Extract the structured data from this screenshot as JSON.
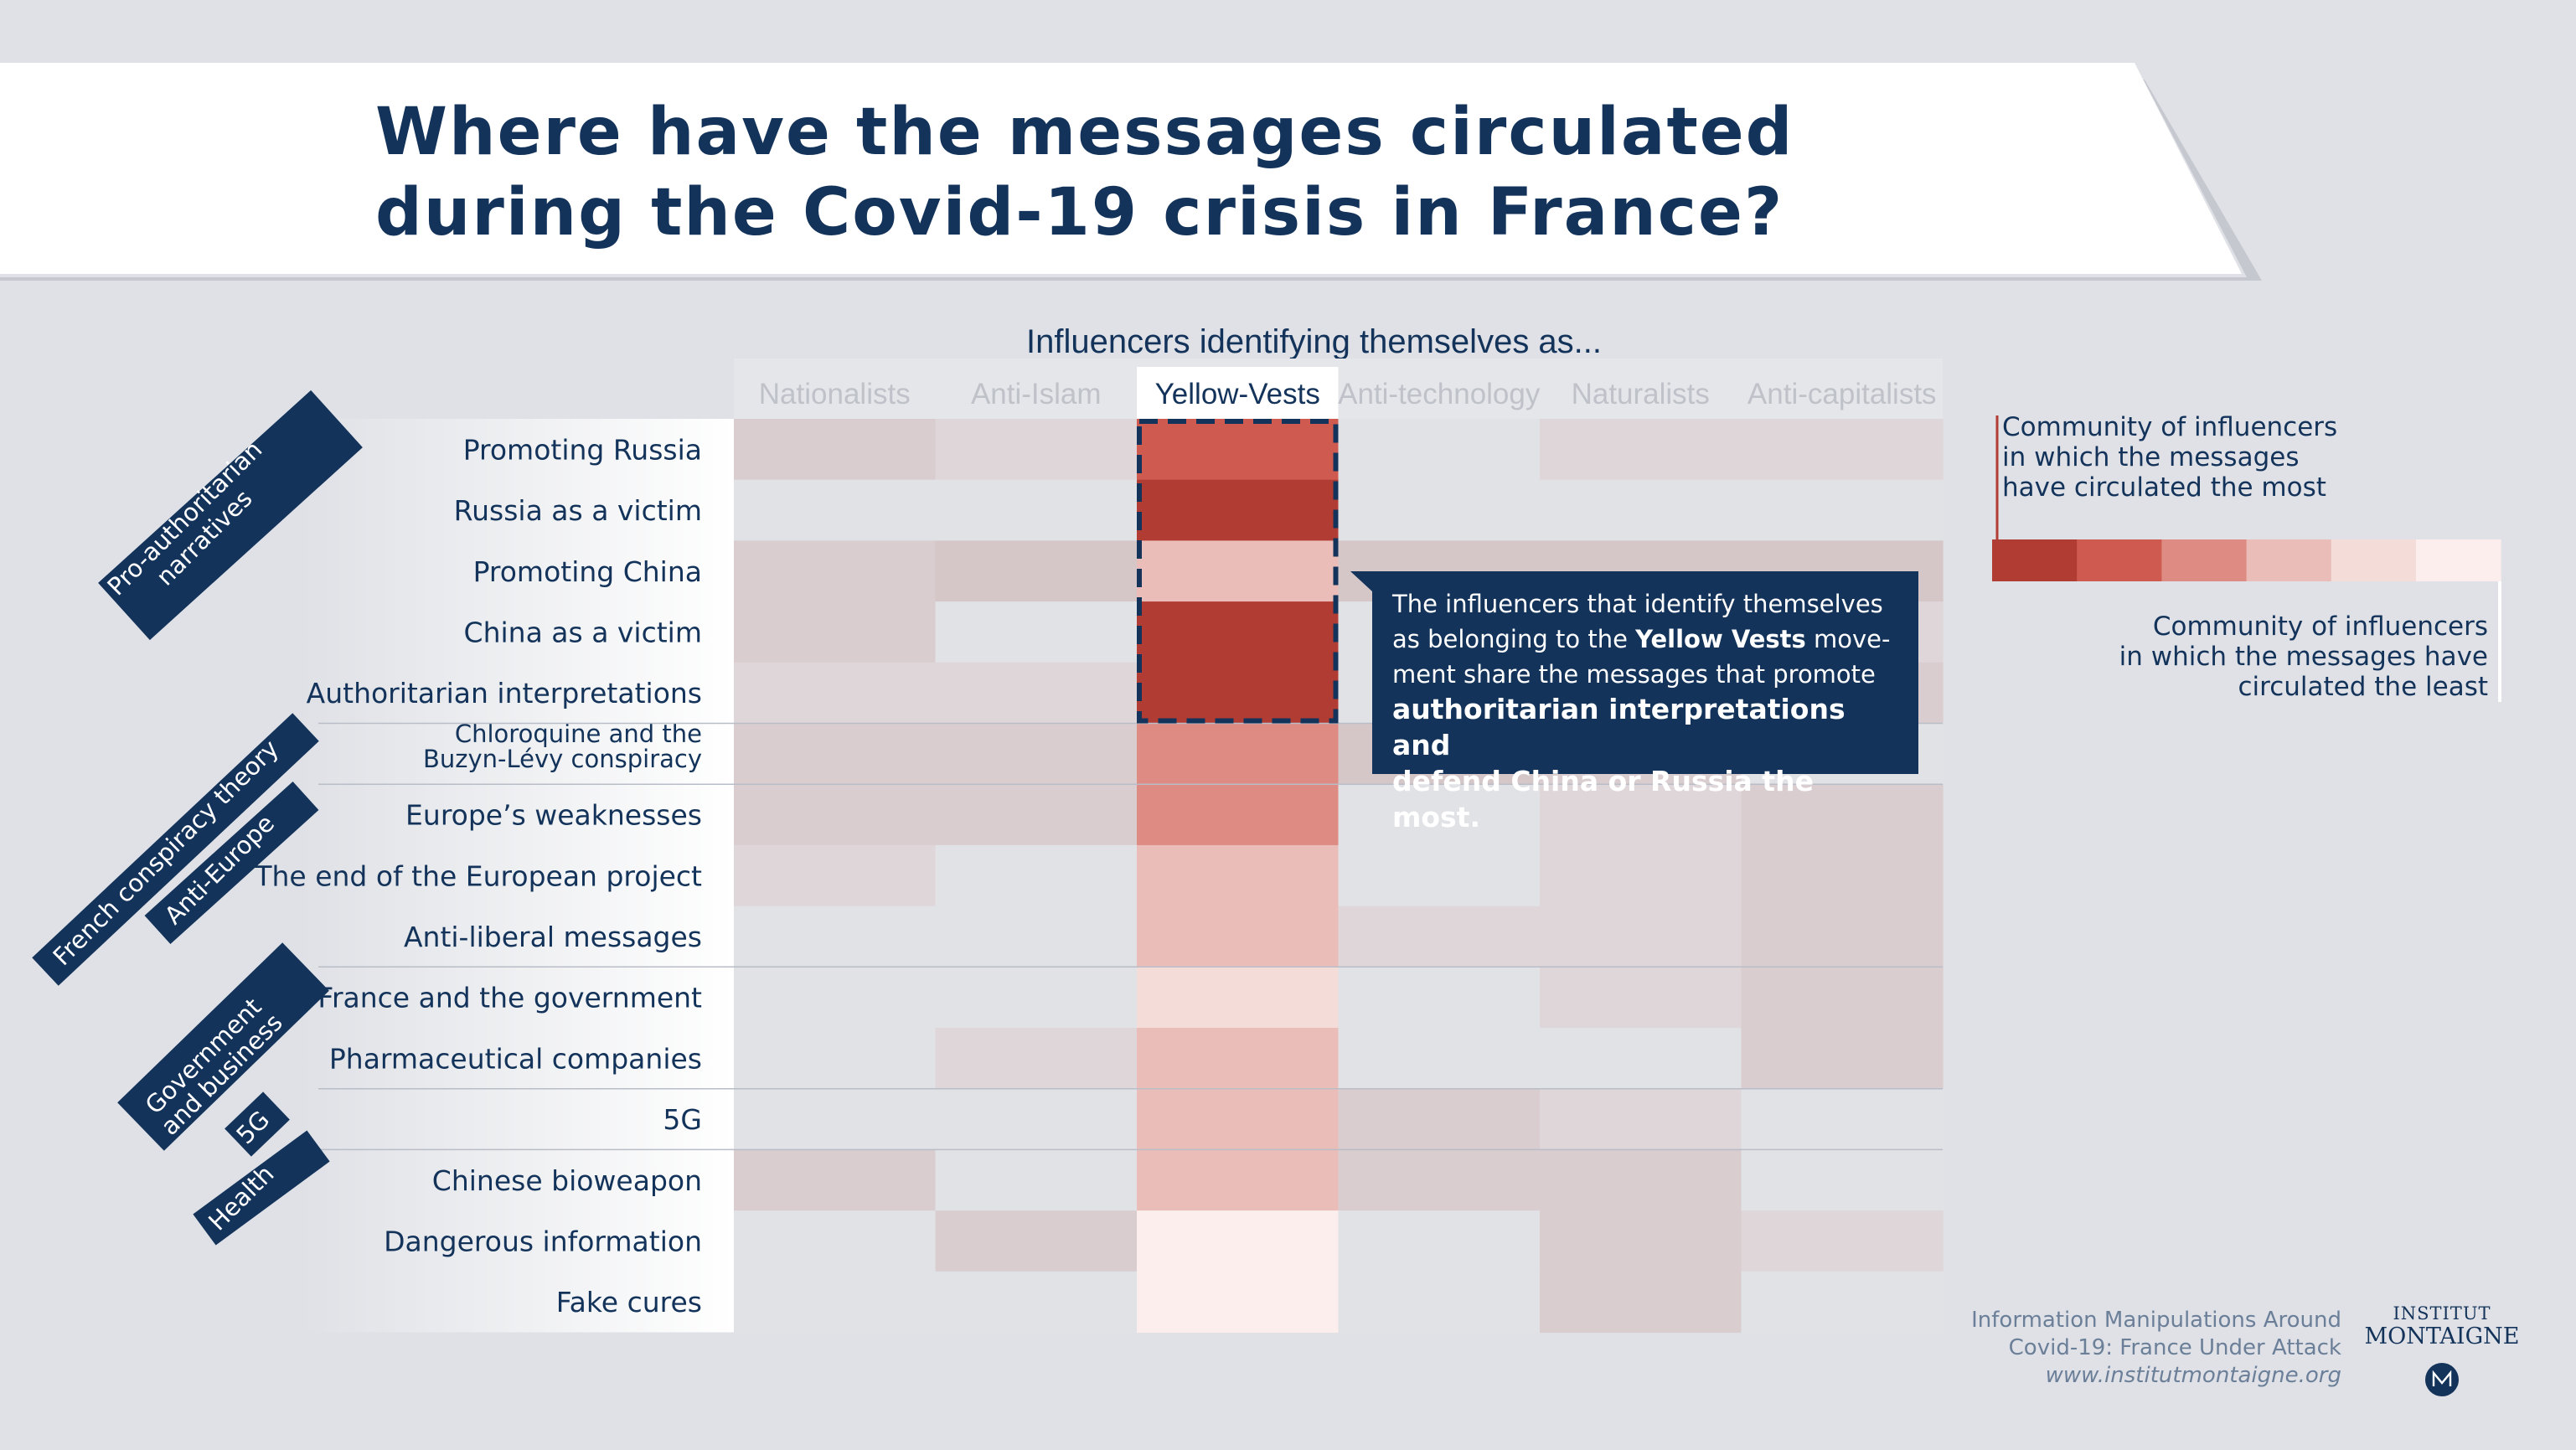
{
  "header": {
    "title": "Where have the messages circulated during the Covid-19 crisis in France?"
  },
  "chart_data": {
    "type": "heatmap",
    "title": "Influencers identifying themselves as...",
    "columns": [
      "Nationalists",
      "Anti-Islam",
      "Yellow-Vests",
      "Anti-technology",
      "Naturalists",
      "Anti-capitalists"
    ],
    "highlighted_column": "Yellow-Vests",
    "rows": [
      "Promoting Russia",
      "Russia as a victim",
      "Promoting China",
      "China as a victim",
      "Authoritarian interpretations",
      "Chloroquine and the Buzyn-Lévy conspiracy",
      "Europe’s weaknesses",
      "The end of the European project",
      "Anti-liberal messages",
      "France and the government",
      "Pharmaceutical companies",
      "5G",
      "Chinese bioweapon",
      "Dangerous information",
      "Fake cures"
    ],
    "row_label_lines": [
      [
        "Promoting Russia"
      ],
      [
        "Russia as a victim"
      ],
      [
        "Promoting China"
      ],
      [
        "China as a victim"
      ],
      [
        "Authoritarian interpretations"
      ],
      [
        "Chloroquine and the",
        "Buzyn-Lévy conspiracy"
      ],
      [
        "Europe’s weaknesses"
      ],
      [
        "The end of the European project"
      ],
      [
        "Anti-liberal messages"
      ],
      [
        "France and the government"
      ],
      [
        "Pharmaceutical companies"
      ],
      [
        "5G"
      ],
      [
        "Chinese bioweapon"
      ],
      [
        "Dangerous information"
      ],
      [
        "Fake cures"
      ]
    ],
    "groups": [
      {
        "label_lines": [
          "Pro-authoritarian",
          "narratives"
        ],
        "rows": [
          0,
          4
        ]
      },
      {
        "label_lines": [
          "French conspiracy theory"
        ],
        "rows": [
          5,
          5
        ]
      },
      {
        "label_lines": [
          "Anti-Europe"
        ],
        "rows": [
          6,
          8
        ]
      },
      {
        "label_lines": [
          "Government",
          "and business"
        ],
        "rows": [
          9,
          10
        ]
      },
      {
        "label_lines": [
          "5G"
        ],
        "rows": [
          11,
          11
        ]
      },
      {
        "label_lines": [
          "Health"
        ],
        "rows": [
          12,
          14
        ]
      }
    ],
    "scale_note": "Intensity 1 = messages circulated the most, 6 = circulated the least; 0 = background (not highlighted)",
    "values": [
      [
        4,
        5,
        2,
        0,
        5,
        5
      ],
      [
        0,
        0,
        1,
        0,
        0,
        0
      ],
      [
        4,
        3,
        4,
        3,
        3,
        3
      ],
      [
        4,
        0,
        1,
        0,
        0,
        5
      ],
      [
        5,
        5,
        1,
        0,
        0,
        4
      ],
      [
        4,
        4,
        3,
        3,
        4,
        0
      ],
      [
        4,
        4,
        3,
        0,
        5,
        4
      ],
      [
        5,
        0,
        4,
        0,
        5,
        4
      ],
      [
        0,
        0,
        4,
        5,
        5,
        4
      ],
      [
        0,
        0,
        5,
        0,
        5,
        4
      ],
      [
        0,
        5,
        4,
        0,
        0,
        4
      ],
      [
        0,
        0,
        4,
        4,
        5,
        0
      ],
      [
        4,
        0,
        4,
        4,
        4,
        0
      ],
      [
        0,
        4,
        6,
        0,
        4,
        5
      ],
      [
        0,
        0,
        6,
        0,
        4,
        0
      ]
    ],
    "emphasis": {
      "column": "Yellow-Vests",
      "rows": [
        0,
        4
      ]
    }
  },
  "colors": {
    "navy": "#13335a",
    "background": "#dfe1e6",
    "scale": [
      "#b03c34",
      "#cf5a4f",
      "#dd8b83",
      "#ebbdb8",
      "#f4dcd9",
      "#fbeeec"
    ],
    "muted": {
      "3": "#d5c6c8",
      "4": "#d9cdcf",
      "5": "#dfd6d9"
    },
    "empty": "#e1e2e6"
  },
  "callout": {
    "line1": "The influencers that identify themselves",
    "line2_pre": "as belonging to the ",
    "line2_bold": "Yellow Vests",
    "line2_post": " move-",
    "line3": "ment share the messages that promote",
    "line4": "authoritarian interpretations and",
    "line5": "defend China or Russia the most."
  },
  "legend": {
    "high_lines": [
      "Community of influencers",
      "in which the messages",
      "have circulated the most"
    ],
    "low_lines": [
      "Community of influencers",
      "in which the messages have",
      "circulated the least"
    ]
  },
  "footer": {
    "source_line1": "Information Manipulations Around",
    "source_line2": "Covid-19: France Under Attack",
    "url": "www.institutmontaigne.org",
    "brand_top": "INSTITUT",
    "brand_bottom": "MONTAIGNE"
  }
}
